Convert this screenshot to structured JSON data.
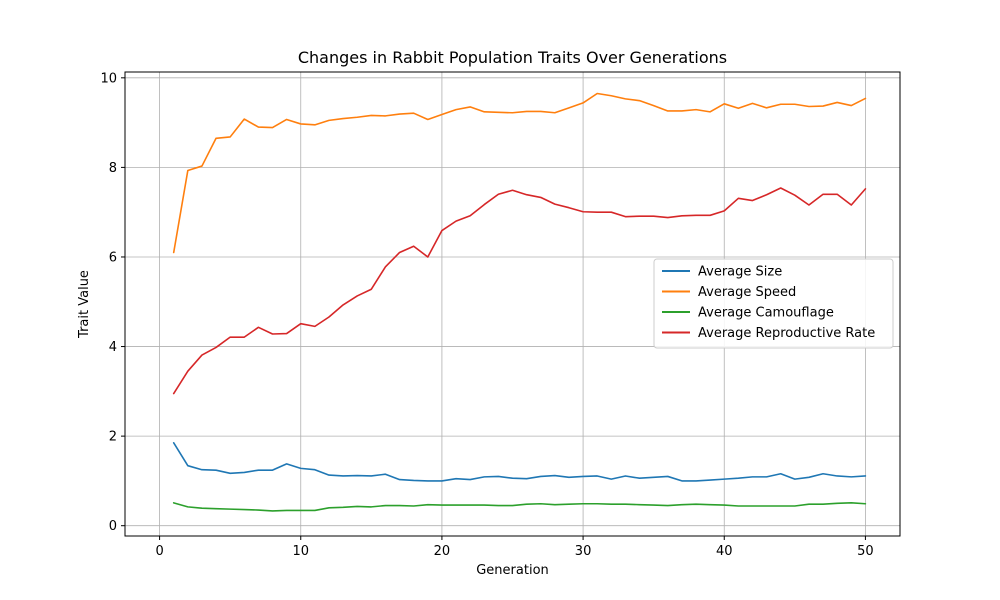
{
  "chart_data": {
    "type": "line",
    "title": "Changes in Rabbit Population Traits Over Generations",
    "xlabel": "Generation",
    "ylabel": "Trait Value",
    "xlim": [
      -2.45,
      52.45
    ],
    "ylim": [
      -0.23,
      10.13
    ],
    "xticks": [
      0,
      10,
      20,
      30,
      40,
      50
    ],
    "yticks": [
      0,
      2,
      4,
      6,
      8,
      10
    ],
    "grid": true,
    "legend_position": "center-right",
    "x": [
      1,
      2,
      3,
      4,
      5,
      6,
      7,
      8,
      9,
      10,
      11,
      12,
      13,
      14,
      15,
      16,
      17,
      18,
      19,
      20,
      21,
      22,
      23,
      24,
      25,
      26,
      27,
      28,
      29,
      30,
      31,
      32,
      33,
      34,
      35,
      36,
      37,
      38,
      39,
      40,
      41,
      42,
      43,
      44,
      45,
      46,
      47,
      48,
      49,
      50
    ],
    "series": [
      {
        "name": "Average Size",
        "color": "#1f77b4",
        "values": [
          1.85,
          1.34,
          1.25,
          1.24,
          1.17,
          1.19,
          1.24,
          1.24,
          1.38,
          1.28,
          1.25,
          1.13,
          1.11,
          1.12,
          1.11,
          1.15,
          1.03,
          1.01,
          1.0,
          1.0,
          1.05,
          1.03,
          1.09,
          1.1,
          1.06,
          1.05,
          1.1,
          1.12,
          1.08,
          1.1,
          1.11,
          1.04,
          1.11,
          1.06,
          1.08,
          1.1,
          1.0,
          1.0,
          1.02,
          1.04,
          1.06,
          1.09,
          1.09,
          1.16,
          1.04,
          1.08,
          1.16,
          1.11,
          1.09,
          1.11
        ]
      },
      {
        "name": "Average Speed",
        "color": "#ff7f0e",
        "values": [
          6.1,
          7.93,
          8.03,
          8.65,
          8.68,
          9.08,
          8.9,
          8.89,
          9.07,
          8.97,
          8.95,
          9.05,
          9.09,
          9.12,
          9.16,
          9.15,
          9.19,
          9.21,
          9.07,
          9.18,
          9.29,
          9.35,
          9.24,
          9.23,
          9.22,
          9.25,
          9.25,
          9.22,
          9.33,
          9.44,
          9.65,
          9.6,
          9.53,
          9.49,
          9.38,
          9.26,
          9.26,
          9.29,
          9.24,
          9.42,
          9.32,
          9.43,
          9.33,
          9.41,
          9.41,
          9.36,
          9.37,
          9.45,
          9.38,
          9.54
        ]
      },
      {
        "name": "Average Camouflage",
        "color": "#2ca02c",
        "values": [
          0.51,
          0.42,
          0.39,
          0.38,
          0.37,
          0.36,
          0.35,
          0.33,
          0.34,
          0.34,
          0.34,
          0.4,
          0.41,
          0.43,
          0.42,
          0.45,
          0.45,
          0.44,
          0.47,
          0.46,
          0.46,
          0.46,
          0.46,
          0.45,
          0.45,
          0.48,
          0.49,
          0.47,
          0.48,
          0.49,
          0.49,
          0.48,
          0.48,
          0.47,
          0.46,
          0.45,
          0.47,
          0.48,
          0.47,
          0.46,
          0.44,
          0.44,
          0.44,
          0.44,
          0.44,
          0.48,
          0.48,
          0.5,
          0.51,
          0.49
        ]
      },
      {
        "name": "Average Reproductive Rate",
        "color": "#d62728",
        "values": [
          2.95,
          3.45,
          3.81,
          3.98,
          4.21,
          4.21,
          4.43,
          4.28,
          4.29,
          4.51,
          4.45,
          4.66,
          4.93,
          5.13,
          5.28,
          5.78,
          6.1,
          6.24,
          6.0,
          6.59,
          6.8,
          6.92,
          7.17,
          7.4,
          7.49,
          7.39,
          7.33,
          7.18,
          7.1,
          7.01,
          7.0,
          7.0,
          6.9,
          6.91,
          6.91,
          6.88,
          6.92,
          6.93,
          6.93,
          7.03,
          7.31,
          7.26,
          7.39,
          7.54,
          7.38,
          7.16,
          7.4,
          7.4,
          7.16,
          7.52
        ]
      }
    ]
  }
}
